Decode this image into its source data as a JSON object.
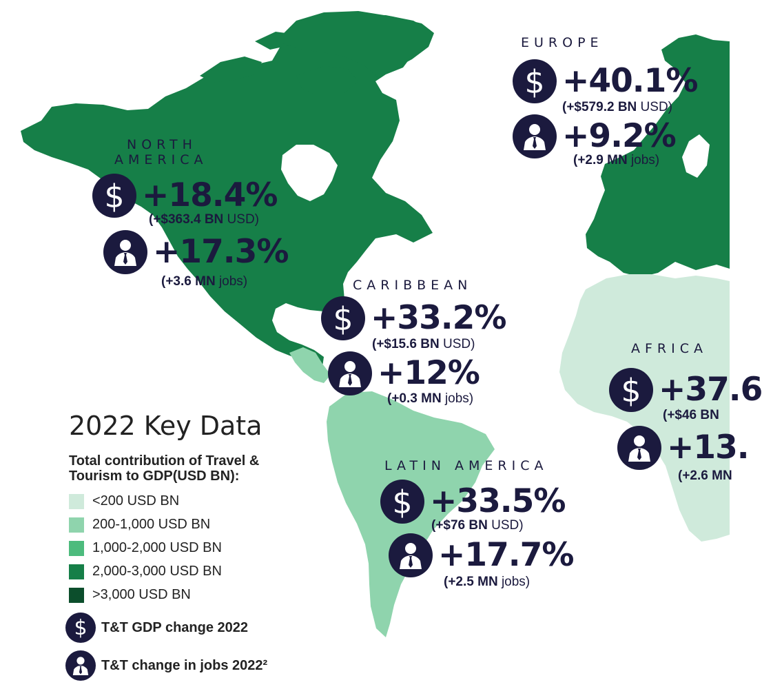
{
  "regions": {
    "north_america": {
      "name_line1": "NORTH",
      "name_line2": "AMERICA",
      "gdp_change": "+18.4%",
      "gdp_abs_bold": "(+$363.4 BN",
      "gdp_abs_unit": " USD)",
      "jobs_change": "+17.3%",
      "jobs_abs_bold": "(+3.6 MN",
      "jobs_abs_unit": " jobs)"
    },
    "europe": {
      "name": "EUROPE",
      "gdp_change": "+40.1%",
      "gdp_abs_bold": "(+$579.2 BN",
      "gdp_abs_unit": " USD)",
      "jobs_change": "+9.2%",
      "jobs_abs_bold": "(+2.9 MN",
      "jobs_abs_unit": " jobs)"
    },
    "caribbean": {
      "name": "CARIBBEAN",
      "gdp_change": "+33.2%",
      "gdp_abs_bold": "(+$15.6 BN",
      "gdp_abs_unit": " USD)",
      "jobs_change": "+12%",
      "jobs_abs_bold": "(+0.3 MN",
      "jobs_abs_unit": " jobs)"
    },
    "africa": {
      "name": "AFRICA",
      "gdp_change": "+37.6",
      "gdp_abs_bold": "(+$46 BN",
      "jobs_change": "+13.",
      "jobs_abs_bold": "(+2.6 MN"
    },
    "latin_america": {
      "name": "LATIN AMERICA",
      "gdp_change": "+33.5%",
      "gdp_abs_bold": "(+$76 BN",
      "gdp_abs_unit": " USD)",
      "jobs_change": "+17.7%",
      "jobs_abs_bold": "(+2.5 MN",
      "jobs_abs_unit": " jobs)"
    }
  },
  "legend": {
    "title": "2022 Key Data",
    "subtitle": "Total contribution of Travel & Tourism to GDP(USD BN):",
    "scale": [
      {
        "label": "<200 USD BN",
        "color": "#cfeadb"
      },
      {
        "label": "200-1,000 USD BN",
        "color": "#8fd4ad"
      },
      {
        "label": "1,000-2,000 USD BN",
        "color": "#4dbb7d"
      },
      {
        "label": "2,000-3,000 USD BN",
        "color": "#167f48"
      },
      {
        "label": ">3,000 USD BN",
        "color": "#0c4e2c"
      }
    ],
    "gdp_key": "T&T GDP change 2022",
    "jobs_key": "T&T change in jobs 2022²"
  },
  "icons": {
    "gdp": "dollar-icon",
    "jobs": "businessman-icon"
  },
  "colors": {
    "north_america": "#167f48",
    "europe": "#167f48",
    "latin_america": "#8fd4ad",
    "central_america": "#8fd4ad",
    "africa": "#cfeadb",
    "badge": "#1b1a3e"
  }
}
